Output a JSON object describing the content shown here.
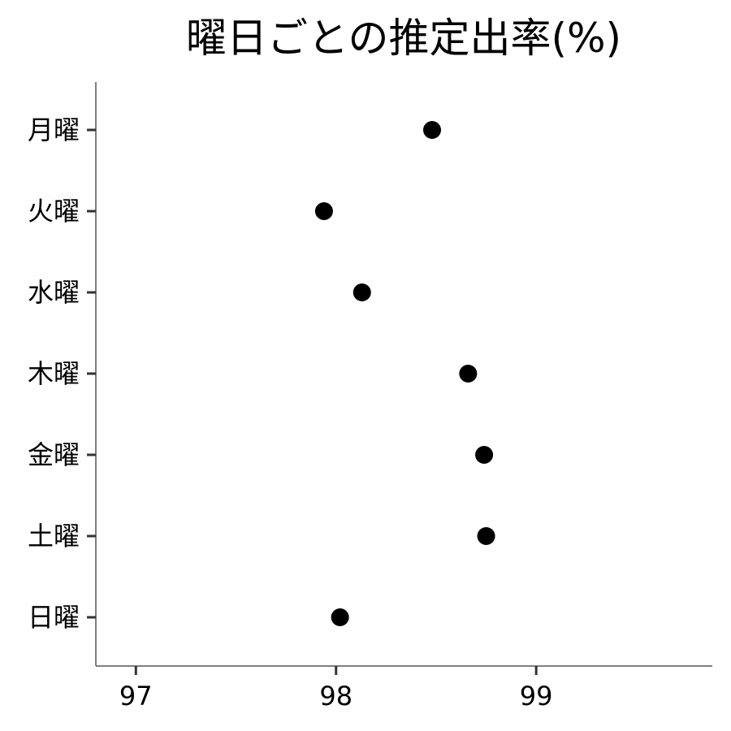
{
  "chart_data": {
    "type": "scatter",
    "title": "曜日ごとの推定出率(%)",
    "xlabel": "",
    "ylabel": "",
    "categories": [
      "月曜",
      "火曜",
      "水曜",
      "木曜",
      "金曜",
      "土曜",
      "日曜"
    ],
    "values": [
      98.48,
      97.94,
      98.13,
      98.66,
      98.74,
      98.75,
      98.02
    ],
    "x_ticks": [
      97,
      98,
      99
    ],
    "xlim": [
      96.8,
      99.88
    ],
    "grid": false,
    "legend": "none",
    "point_color": "#000000"
  }
}
